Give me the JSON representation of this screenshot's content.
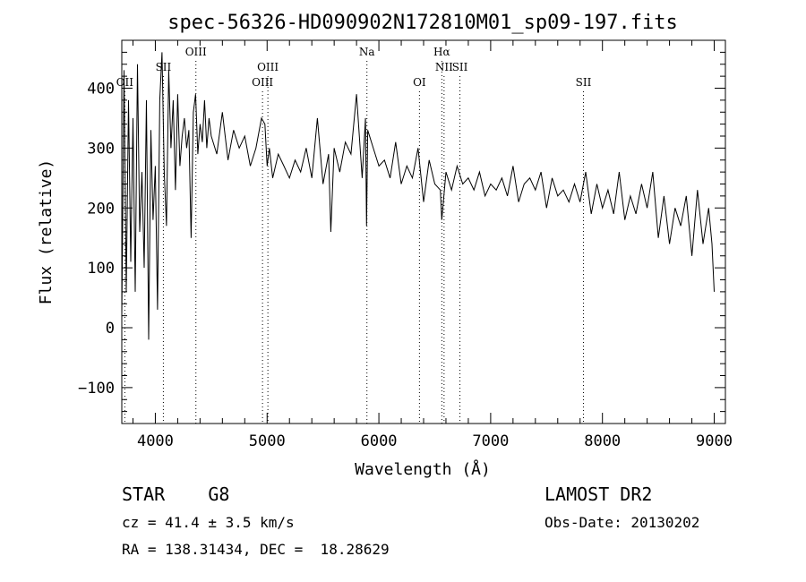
{
  "chart_data": {
    "type": "line",
    "title": "spec-56326-HD090902N172810M01_sp09-197.fits",
    "xlabel": "Wavelength (Å)",
    "ylabel": "Flux (relative)",
    "xlim": [
      3700,
      9100
    ],
    "ylim": [
      -160,
      480
    ],
    "xticks": [
      4000,
      5000,
      6000,
      7000,
      8000,
      9000
    ],
    "yticks": [
      -100,
      0,
      100,
      200,
      300,
      400
    ],
    "grid": false,
    "series": [
      {
        "x": [
          3700,
          3720,
          3740,
          3760,
          3780,
          3800,
          3820,
          3840,
          3860,
          3880,
          3900,
          3920,
          3940,
          3960,
          3980,
          4000,
          4020,
          4040,
          4060,
          4080,
          4100,
          4120,
          4140,
          4160,
          4180,
          4200,
          4220,
          4240,
          4260,
          4280,
          4300,
          4320,
          4340,
          4360,
          4380,
          4400,
          4420,
          4440,
          4460,
          4480,
          4500,
          4550,
          4600,
          4650,
          4700,
          4750,
          4800,
          4850,
          4900,
          4950,
          4980,
          5000,
          5020,
          5050,
          5100,
          5150,
          5200,
          5250,
          5300,
          5350,
          5400,
          5450,
          5500,
          5550,
          5570,
          5600,
          5650,
          5700,
          5750,
          5800,
          5850,
          5880,
          5890,
          5900,
          5950,
          6000,
          6050,
          6100,
          6150,
          6200,
          6250,
          6300,
          6350,
          6400,
          6450,
          6500,
          6550,
          6563,
          6600,
          6650,
          6700,
          6750,
          6800,
          6850,
          6900,
          6950,
          7000,
          7050,
          7100,
          7150,
          7200,
          7250,
          7300,
          7350,
          7400,
          7450,
          7500,
          7550,
          7600,
          7650,
          7700,
          7750,
          7800,
          7850,
          7900,
          7950,
          8000,
          8050,
          8100,
          8150,
          8200,
          8250,
          8300,
          8350,
          8400,
          8450,
          8500,
          8550,
          8600,
          8650,
          8700,
          8750,
          8800,
          8850,
          8900,
          8950,
          8980,
          9000
        ],
        "values": [
          20,
          430,
          60,
          380,
          110,
          350,
          60,
          440,
          160,
          260,
          100,
          380,
          -20,
          330,
          180,
          270,
          30,
          380,
          460,
          260,
          170,
          430,
          300,
          380,
          230,
          390,
          270,
          320,
          350,
          300,
          330,
          150,
          360,
          390,
          290,
          340,
          310,
          380,
          300,
          350,
          320,
          290,
          360,
          280,
          330,
          300,
          320,
          270,
          300,
          350,
          340,
          270,
          300,
          250,
          290,
          270,
          250,
          280,
          260,
          300,
          250,
          350,
          240,
          290,
          160,
          300,
          260,
          310,
          290,
          390,
          250,
          350,
          170,
          330,
          300,
          270,
          280,
          250,
          310,
          240,
          270,
          250,
          300,
          210,
          280,
          240,
          230,
          180,
          260,
          230,
          270,
          240,
          250,
          230,
          260,
          220,
          240,
          230,
          250,
          220,
          270,
          210,
          240,
          250,
          230,
          260,
          200,
          250,
          220,
          230,
          210,
          240,
          210,
          260,
          190,
          240,
          200,
          230,
          190,
          260,
          180,
          220,
          190,
          240,
          200,
          260,
          150,
          220,
          140,
          200,
          170,
          220,
          120,
          230,
          140,
          200,
          140,
          60
        ]
      }
    ],
    "line_labels": [
      {
        "label": "OII",
        "x": 3727,
        "row": 3
      },
      {
        "label": "SII",
        "x": 4072,
        "row": 2
      },
      {
        "label": "OIII",
        "x": 4363,
        "row": 1
      },
      {
        "label": "OIII",
        "x": 4959,
        "row": 3
      },
      {
        "label": "OIII",
        "x": 5007,
        "row": 2
      },
      {
        "label": "Na",
        "x": 5893,
        "row": 1
      },
      {
        "label": "OI",
        "x": 6363,
        "row": 3
      },
      {
        "label": "Hα",
        "x": 6563,
        "row": 1
      },
      {
        "label": "NII",
        "x": 6583,
        "row": 2
      },
      {
        "label": "SII",
        "x": 6725,
        "row": 2
      },
      {
        "label": "SII",
        "x": 7830,
        "row": 3
      }
    ]
  },
  "info": {
    "class": "STAR    G8",
    "cz": "cz = 41.4 ± 3.5 km/s",
    "radec": "RA = 138.31434, DEC =  18.28629",
    "survey": "LAMOST DR2",
    "obs_date": "Obs-Date: 20130202"
  }
}
